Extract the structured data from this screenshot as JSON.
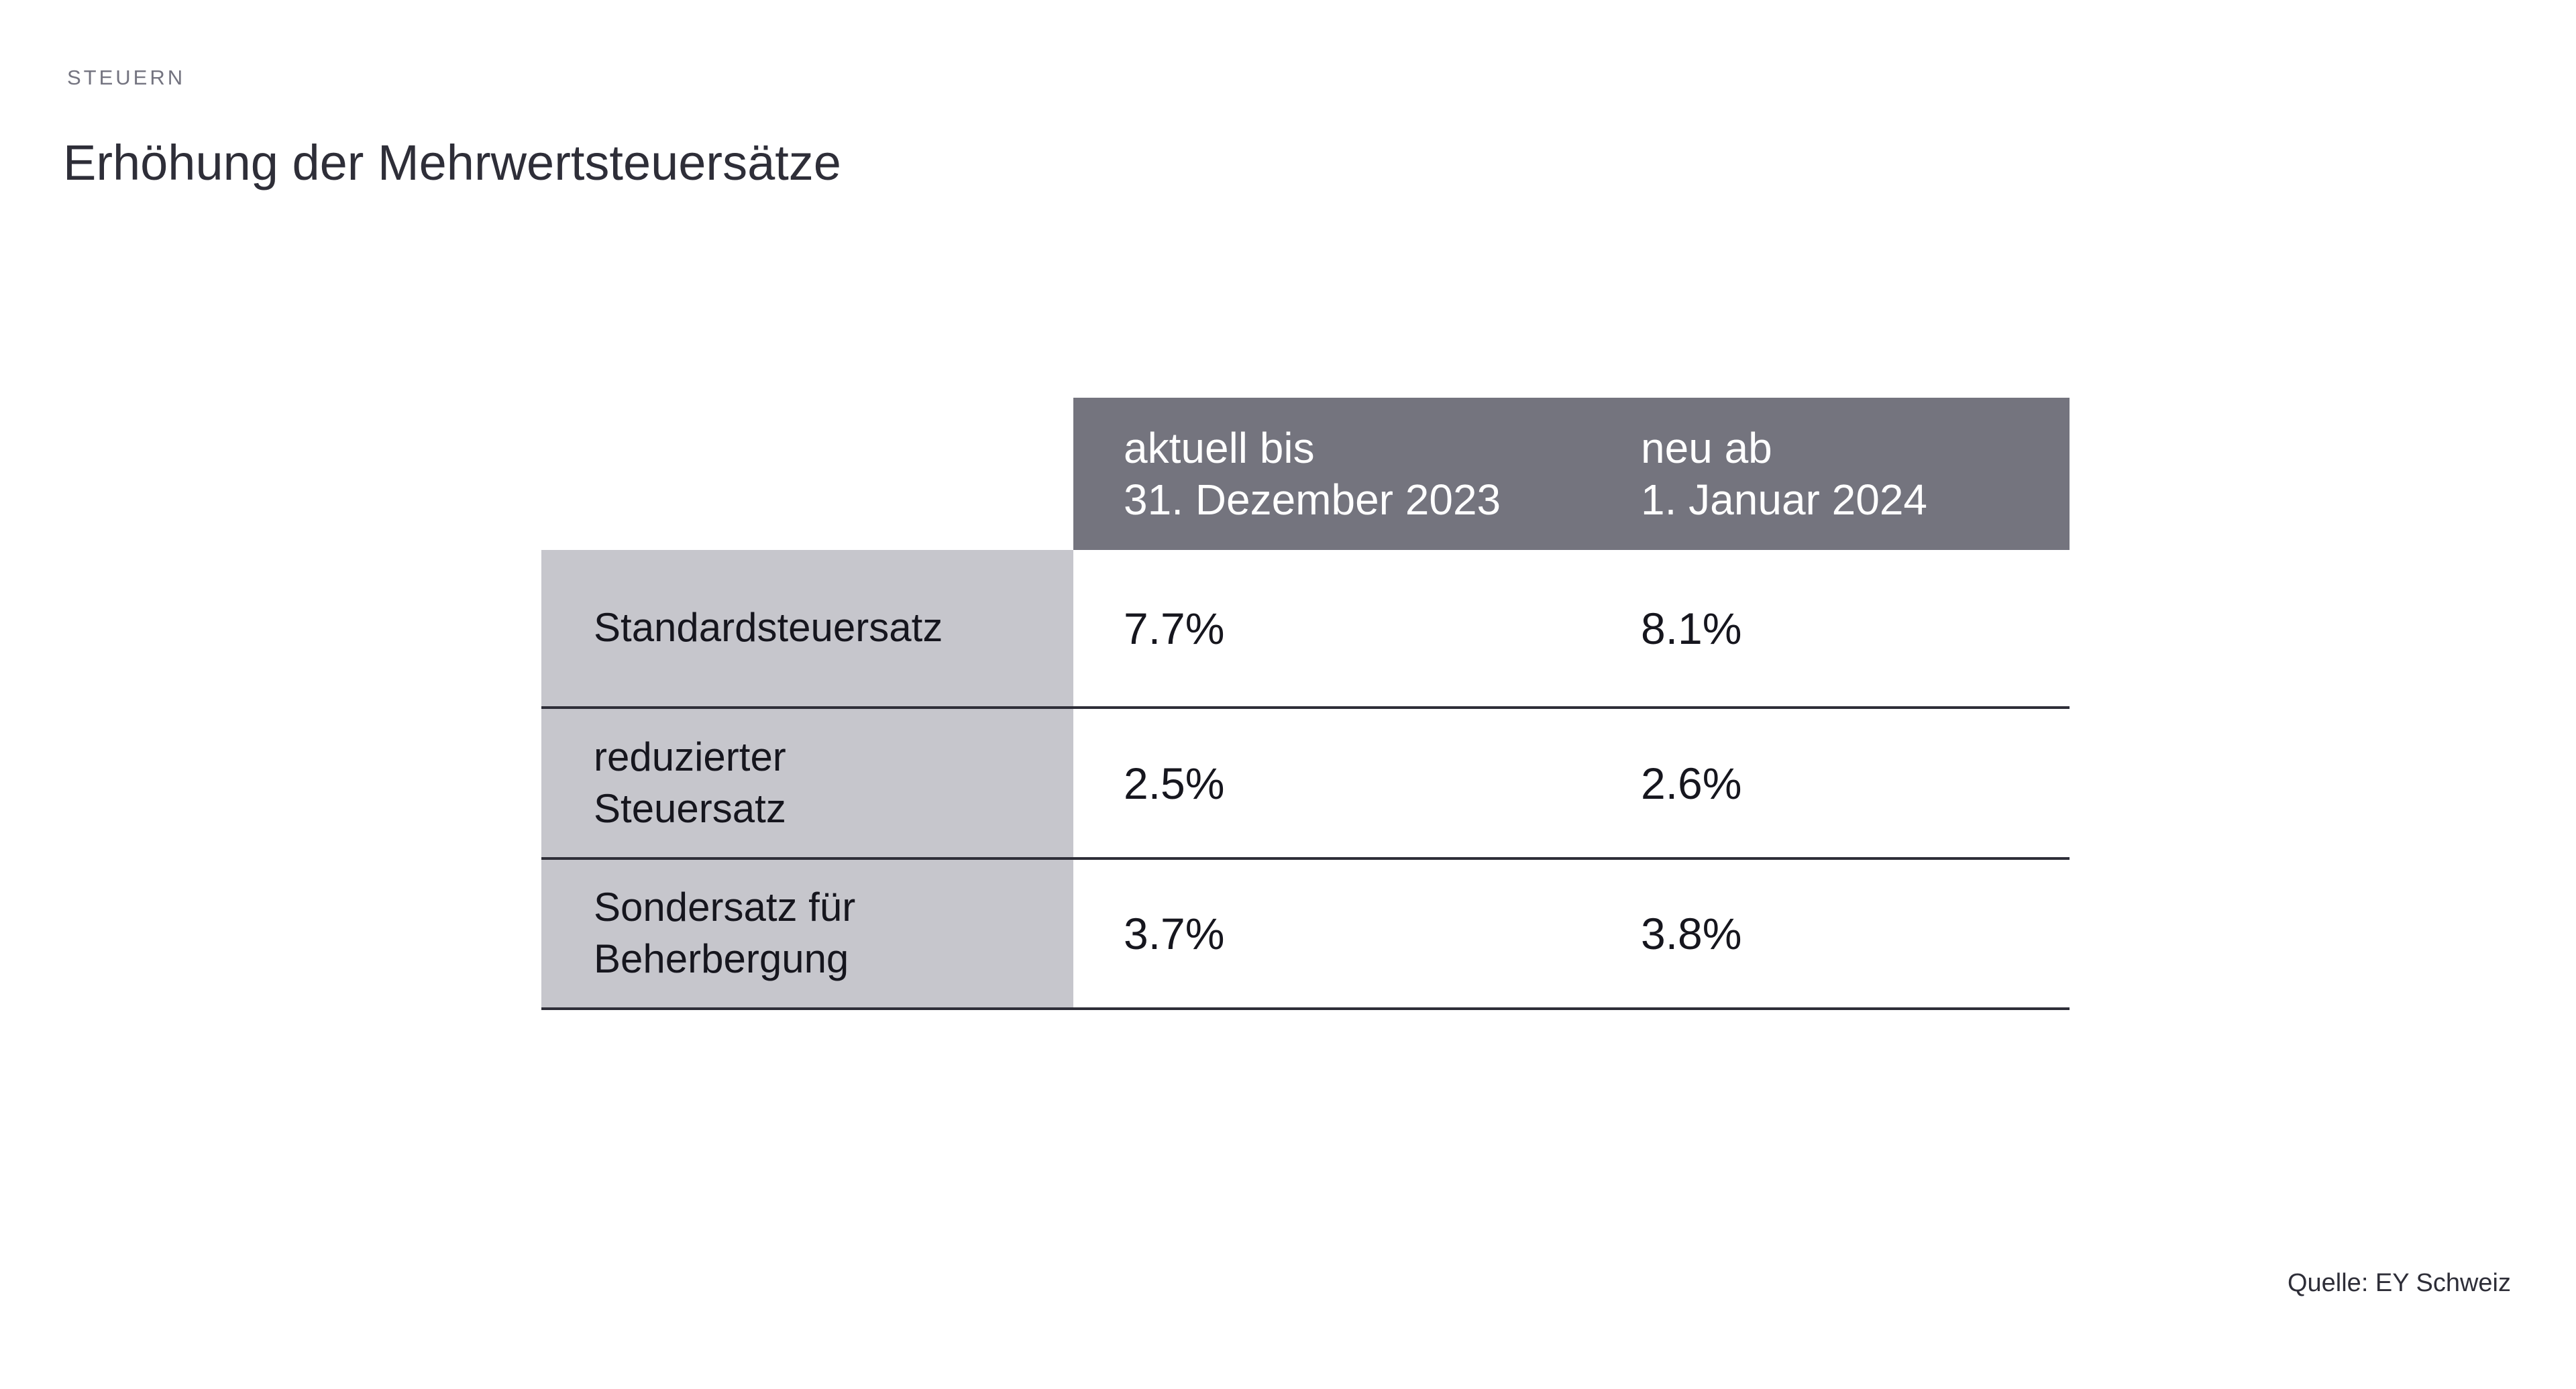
{
  "kicker": "STEUERN",
  "title": "Erhöhung der Mehrwertsteuersätze",
  "source": "Quelle: EY Schweiz",
  "colors": {
    "header_bg": "#74747E",
    "label_column_bg": "#C6C6CC",
    "divider_line": "#2E2E38",
    "header_text": "#FFFFFF",
    "body_text": "#16161E",
    "kicker_text": "#747480",
    "title_text": "#2E2E38"
  },
  "table": {
    "column_headers": [
      {
        "line1": "aktuell bis",
        "line2": "31. Dezember 2023"
      },
      {
        "line1": "neu ab",
        "line2": "1. Januar 2024"
      }
    ],
    "rows": [
      {
        "label_line1": "Standardsteuersatz",
        "label_line2": "",
        "current": "7.7%",
        "new": "8.1%"
      },
      {
        "label_line1": "reduzierter",
        "label_line2": "Steuersatz",
        "current": "2.5%",
        "new": "2.6%"
      },
      {
        "label_line1": "Sondersatz für",
        "label_line2": "Beherbergung",
        "current": "3.7%",
        "new": "3.8%"
      }
    ]
  },
  "chart_data": {
    "type": "table",
    "title": "Erhöhung der Mehrwertsteuersätze",
    "categories": [
      "Standardsteuersatz",
      "reduzierter Steuersatz",
      "Sondersatz für Beherbergung"
    ],
    "series": [
      {
        "name": "aktuell bis 31. Dezember 2023",
        "values": [
          7.7,
          2.5,
          3.7
        ]
      },
      {
        "name": "neu ab 1. Januar 2024",
        "values": [
          8.1,
          2.6,
          3.8
        ]
      }
    ],
    "unit": "%",
    "source": "Quelle: EY Schweiz"
  }
}
